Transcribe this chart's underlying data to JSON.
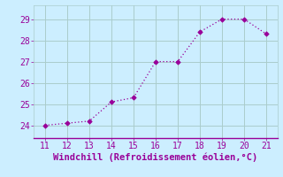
{
  "x": [
    11,
    12,
    13,
    14,
    15,
    16,
    17,
    18,
    19,
    20,
    21
  ],
  "y": [
    24.0,
    24.1,
    24.2,
    25.1,
    25.3,
    27.0,
    27.0,
    28.4,
    29.0,
    29.0,
    28.3
  ],
  "xlabel": "Windchill (Refroidissement éolien,°C)",
  "xlim": [
    10.5,
    21.5
  ],
  "ylim": [
    23.4,
    29.65
  ],
  "yticks": [
    24,
    25,
    26,
    27,
    28,
    29
  ],
  "xticks": [
    11,
    12,
    13,
    14,
    15,
    16,
    17,
    18,
    19,
    20,
    21
  ],
  "line_color": "#990099",
  "marker_color": "#990099",
  "bg_color": "#cceeff",
  "grid_color": "#aacccc",
  "label_color": "#990099",
  "spine_color": "#990099",
  "xlabel_fontsize": 7.5,
  "tick_fontsize": 7
}
